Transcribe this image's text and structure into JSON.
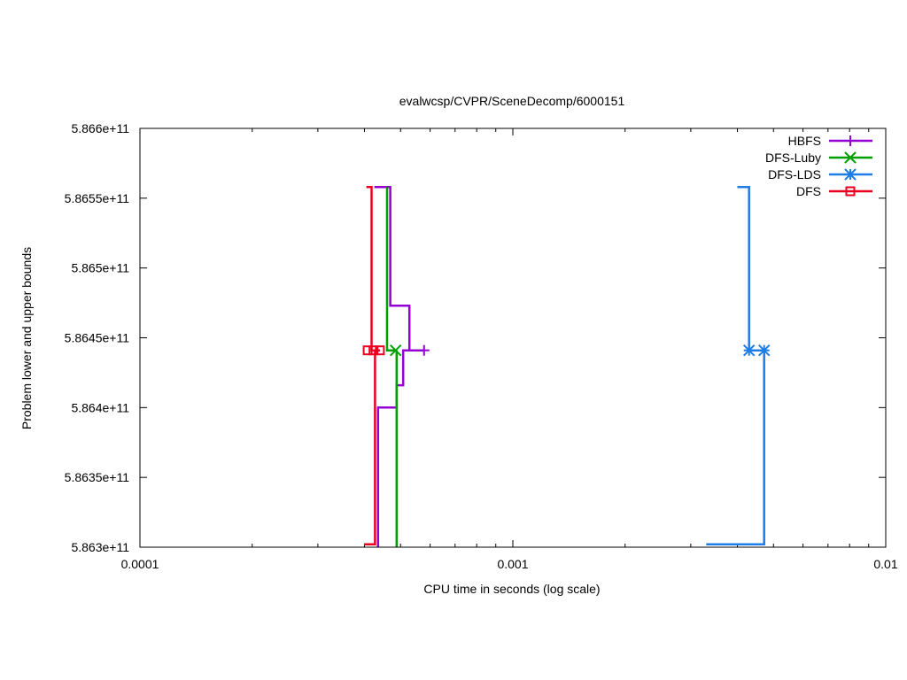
{
  "chart_data": {
    "type": "line",
    "title": "evalwcsp/CVPR/SceneDecomp/6000151",
    "xlabel": "CPU time in seconds (log scale)",
    "ylabel": "Problem lower and upper bounds",
    "x_scale": "log",
    "xlim": [
      0.0001,
      0.01
    ],
    "ylim": [
      586300000000,
      586600000000
    ],
    "x_ticks": [
      0.0001,
      0.001,
      0.01
    ],
    "x_tick_labels": [
      "0.0001",
      "0.001",
      "0.01"
    ],
    "y_ticks": [
      586300000000,
      586350000000,
      586400000000,
      586450000000,
      586500000000,
      586550000000,
      586600000000
    ],
    "y_tick_labels": [
      "5.863e+11",
      "5.8635e+11",
      "5.864e+11",
      "5.8645e+11",
      "5.865e+11",
      "5.8655e+11",
      "5.866e+11"
    ],
    "grid": false,
    "legend_position": "top-right",
    "series": [
      {
        "name": "HBFS",
        "color": "#9400d3",
        "marker": "plus",
        "upper": [
          [
            0.000425,
            586558000000
          ],
          [
            0.000469,
            586558000000
          ],
          [
            0.000469,
            586473000000
          ],
          [
            0.000528,
            586473000000
          ],
          [
            0.000528,
            586441000000
          ],
          [
            0.000578,
            586441000000
          ]
        ],
        "lower": [
          [
            0.000435,
            586300000000
          ],
          [
            0.000435,
            586400000000
          ],
          [
            0.000488,
            586400000000
          ],
          [
            0.000488,
            586416000000
          ],
          [
            0.000508,
            586416000000
          ],
          [
            0.000508,
            586441000000
          ],
          [
            0.000578,
            586441000000
          ]
        ],
        "marker_points": [
          [
            0.000578,
            586441000000
          ]
        ]
      },
      {
        "name": "DFS-Luby",
        "color": "#00a000",
        "marker": "x",
        "upper": [
          [
            0.00046,
            586558000000
          ],
          [
            0.00046,
            586441000000
          ],
          [
            0.000485,
            586441000000
          ]
        ],
        "lower": [
          [
            0.000488,
            586300000000
          ],
          [
            0.000488,
            586441000000
          ]
        ],
        "marker_points": [
          [
            0.000485,
            586441000000
          ]
        ]
      },
      {
        "name": "DFS-LDS",
        "color": "#1e7ce6",
        "marker": "star",
        "upper": [
          [
            0.004,
            586558000000
          ],
          [
            0.0043,
            586558000000
          ],
          [
            0.0043,
            586441000000
          ],
          [
            0.00472,
            586441000000
          ]
        ],
        "lower": [
          [
            0.0033,
            586302000000
          ],
          [
            0.00472,
            586302000000
          ],
          [
            0.00472,
            586441000000
          ]
        ],
        "marker_points": [
          [
            0.0043,
            586441000000
          ],
          [
            0.00472,
            586441000000
          ]
        ]
      },
      {
        "name": "DFS",
        "color": "#e8001e",
        "marker": "square",
        "upper": [
          [
            0.000405,
            586558000000
          ],
          [
            0.000418,
            586558000000
          ],
          [
            0.000418,
            586441000000
          ],
          [
            0.00044,
            586441000000
          ]
        ],
        "lower": [
          [
            0.000399,
            586302000000
          ],
          [
            0.000427,
            586302000000
          ],
          [
            0.000427,
            586441000000
          ],
          [
            0.00044,
            586441000000
          ]
        ],
        "marker_points": [
          [
            0.000408,
            586441000000
          ],
          [
            0.000423,
            586441000000
          ],
          [
            0.00044,
            586441000000
          ]
        ]
      }
    ]
  }
}
